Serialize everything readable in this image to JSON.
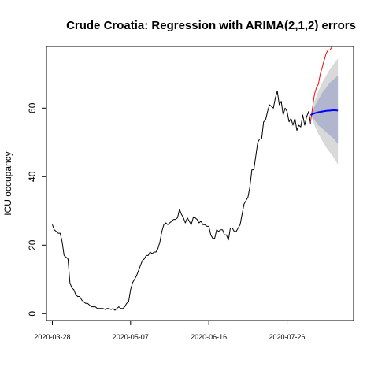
{
  "chart_data": {
    "type": "line",
    "title": "Crude Croatia: Regression with ARIMA(2,1,2) errors",
    "xlabel": "",
    "ylabel": "ICU occupancy",
    "x_range": [
      "2020-03-25",
      "2020-08-29"
    ],
    "ylim": [
      -2,
      78
    ],
    "x_ticks": [
      "2020-03-28",
      "2020-05-07",
      "2020-06-16",
      "2020-07-26"
    ],
    "y_ticks": [
      0,
      20,
      40,
      60
    ],
    "grid": false,
    "legend": "none",
    "colors": {
      "observed": "#000000",
      "actual": "#ff0000",
      "forecast": "#0000ff",
      "band80": "#b1b5ce",
      "band95": "#d9d9d9"
    },
    "series": [
      {
        "values": [
          [
            "2020-03-28",
            26
          ],
          [
            "2020-03-29",
            24.5
          ],
          [
            "2020-03-30",
            24
          ],
          [
            "2020-03-31",
            23.5
          ],
          [
            "2020-04-01",
            23.5
          ],
          [
            "2020-04-02",
            21
          ],
          [
            "2020-04-03",
            17
          ],
          [
            "2020-04-04",
            16.5
          ],
          [
            "2020-04-05",
            16
          ],
          [
            "2020-04-06",
            9
          ],
          [
            "2020-04-07",
            7.5
          ],
          [
            "2020-04-08",
            7
          ],
          [
            "2020-04-09",
            5.5
          ],
          [
            "2020-04-10",
            5
          ],
          [
            "2020-04-11",
            5
          ],
          [
            "2020-04-12",
            4
          ],
          [
            "2020-04-13",
            3.5
          ],
          [
            "2020-04-14",
            3
          ],
          [
            "2020-04-15",
            3
          ],
          [
            "2020-04-16",
            2.5
          ],
          [
            "2020-04-17",
            2
          ],
          [
            "2020-04-18",
            2
          ],
          [
            "2020-04-19",
            2
          ],
          [
            "2020-04-20",
            1.5
          ],
          [
            "2020-04-21",
            1.5
          ],
          [
            "2020-04-22",
            1.5
          ],
          [
            "2020-04-23",
            1.5
          ],
          [
            "2020-04-24",
            1.2
          ],
          [
            "2020-04-25",
            1.5
          ],
          [
            "2020-04-26",
            1.5
          ],
          [
            "2020-04-27",
            1.2
          ],
          [
            "2020-04-28",
            1.5
          ],
          [
            "2020-04-29",
            1
          ],
          [
            "2020-04-30",
            1.5
          ],
          [
            "2020-05-01",
            2
          ],
          [
            "2020-05-02",
            1.5
          ],
          [
            "2020-05-03",
            1.5
          ],
          [
            "2020-05-04",
            2
          ],
          [
            "2020-05-05",
            3
          ],
          [
            "2020-05-06",
            3.5
          ],
          [
            "2020-05-07",
            7
          ],
          [
            "2020-05-08",
            9
          ],
          [
            "2020-05-09",
            10
          ],
          [
            "2020-05-10",
            11
          ],
          [
            "2020-05-11",
            12.5
          ],
          [
            "2020-05-12",
            14
          ],
          [
            "2020-05-13",
            15.5
          ],
          [
            "2020-05-14",
            16
          ],
          [
            "2020-05-15",
            17
          ],
          [
            "2020-05-16",
            17
          ],
          [
            "2020-05-17",
            18
          ],
          [
            "2020-05-18",
            17.5
          ],
          [
            "2020-05-19",
            18
          ],
          [
            "2020-05-20",
            18
          ],
          [
            "2020-05-21",
            19
          ],
          [
            "2020-05-22",
            21
          ],
          [
            "2020-05-23",
            24
          ],
          [
            "2020-05-24",
            26
          ],
          [
            "2020-05-25",
            26.5
          ],
          [
            "2020-05-26",
            26
          ],
          [
            "2020-05-27",
            26.5
          ],
          [
            "2020-05-28",
            27
          ],
          [
            "2020-05-29",
            27.5
          ],
          [
            "2020-05-30",
            27.5
          ],
          [
            "2020-05-31",
            28
          ],
          [
            "2020-06-01",
            30.5
          ],
          [
            "2020-06-02",
            29
          ],
          [
            "2020-06-03",
            28
          ],
          [
            "2020-06-04",
            26.5
          ],
          [
            "2020-06-05",
            28
          ],
          [
            "2020-06-06",
            27
          ],
          [
            "2020-06-07",
            26
          ],
          [
            "2020-06-08",
            28
          ],
          [
            "2020-06-09",
            28
          ],
          [
            "2020-06-10",
            27.5
          ],
          [
            "2020-06-11",
            26.5
          ],
          [
            "2020-06-12",
            27
          ],
          [
            "2020-06-13",
            26
          ],
          [
            "2020-06-14",
            26
          ],
          [
            "2020-06-15",
            25.5
          ],
          [
            "2020-06-16",
            25.5
          ],
          [
            "2020-06-17",
            23
          ],
          [
            "2020-06-18",
            22
          ],
          [
            "2020-06-19",
            22
          ],
          [
            "2020-06-20",
            24.5
          ],
          [
            "2020-06-21",
            24
          ],
          [
            "2020-06-22",
            24.5
          ],
          [
            "2020-06-23",
            24.5
          ],
          [
            "2020-06-24",
            23
          ],
          [
            "2020-06-25",
            23
          ],
          [
            "2020-06-26",
            21.5
          ],
          [
            "2020-06-27",
            25
          ],
          [
            "2020-06-28",
            25
          ],
          [
            "2020-06-29",
            24
          ],
          [
            "2020-06-30",
            24
          ],
          [
            "2020-07-01",
            25
          ],
          [
            "2020-07-02",
            26
          ],
          [
            "2020-07-03",
            29
          ],
          [
            "2020-07-04",
            32
          ],
          [
            "2020-07-05",
            33
          ],
          [
            "2020-07-06",
            34
          ],
          [
            "2020-07-07",
            37
          ],
          [
            "2020-07-08",
            42
          ],
          [
            "2020-07-09",
            42
          ],
          [
            "2020-07-10",
            46
          ],
          [
            "2020-07-11",
            50
          ],
          [
            "2020-07-12",
            51
          ],
          [
            "2020-07-13",
            51
          ],
          [
            "2020-07-14",
            56
          ],
          [
            "2020-07-15",
            56.5
          ],
          [
            "2020-07-16",
            59
          ],
          [
            "2020-07-17",
            61
          ],
          [
            "2020-07-18",
            60.5
          ],
          [
            "2020-07-19",
            60
          ],
          [
            "2020-07-20",
            63
          ],
          [
            "2020-07-21",
            65
          ],
          [
            "2020-07-22",
            61
          ],
          [
            "2020-07-23",
            62
          ],
          [
            "2020-07-24",
            58
          ],
          [
            "2020-07-25",
            60
          ],
          [
            "2020-07-26",
            59
          ],
          [
            "2020-07-27",
            56
          ],
          [
            "2020-07-28",
            57
          ],
          [
            "2020-07-29",
            55
          ],
          [
            "2020-07-30",
            57
          ],
          [
            "2020-07-31",
            53.5
          ],
          [
            "2020-08-01",
            55
          ],
          [
            "2020-08-02",
            54.5
          ],
          [
            "2020-08-03",
            58
          ],
          [
            "2020-08-04",
            55
          ],
          [
            "2020-08-05",
            57.5
          ],
          [
            "2020-08-06",
            59
          ],
          [
            "2020-08-07",
            55.5
          ]
        ],
        "color": "#000000"
      },
      {
        "values": [
          [
            "2020-08-07",
            56
          ],
          [
            "2020-08-08",
            60
          ],
          [
            "2020-08-09",
            64
          ],
          [
            "2020-08-10",
            66
          ],
          [
            "2020-08-11",
            67
          ],
          [
            "2020-08-12",
            70
          ],
          [
            "2020-08-13",
            72
          ],
          [
            "2020-08-14",
            74
          ],
          [
            "2020-08-15",
            76
          ],
          [
            "2020-08-16",
            77
          ],
          [
            "2020-08-17",
            77
          ],
          [
            "2020-08-18",
            78
          ]
        ],
        "color": "#ff0000"
      },
      {
        "values": [
          [
            "2020-08-07",
            58
          ],
          [
            "2020-08-09",
            58.5
          ],
          [
            "2020-08-11",
            58.8
          ],
          [
            "2020-08-13",
            59
          ],
          [
            "2020-08-15",
            59.2
          ],
          [
            "2020-08-17",
            59.3
          ],
          [
            "2020-08-19",
            59.4
          ],
          [
            "2020-08-21",
            59.3
          ]
        ],
        "color": "#0000ff"
      },
      {
        "upper": [
          [
            "2020-08-07",
            58
          ],
          [
            "2020-08-09",
            60.5
          ],
          [
            "2020-08-11",
            62.5
          ],
          [
            "2020-08-13",
            64.5
          ],
          [
            "2020-08-15",
            66
          ],
          [
            "2020-08-17",
            67.5
          ],
          [
            "2020-08-19",
            68.5
          ],
          [
            "2020-08-21",
            69.5
          ]
        ],
        "lower": [
          [
            "2020-08-07",
            58
          ],
          [
            "2020-08-09",
            56.5
          ],
          [
            "2020-08-11",
            55
          ],
          [
            "2020-08-13",
            54
          ],
          [
            "2020-08-15",
            53
          ],
          [
            "2020-08-17",
            52
          ],
          [
            "2020-08-19",
            51
          ],
          [
            "2020-08-21",
            49.5
          ]
        ],
        "color": "#b1b5ce"
      },
      {
        "upper": [
          [
            "2020-08-07",
            58
          ],
          [
            "2020-08-09",
            62
          ],
          [
            "2020-08-11",
            65
          ],
          [
            "2020-08-13",
            67.5
          ],
          [
            "2020-08-15",
            69.5
          ],
          [
            "2020-08-17",
            71.5
          ],
          [
            "2020-08-19",
            73
          ],
          [
            "2020-08-21",
            74.5
          ]
        ],
        "lower": [
          [
            "2020-08-07",
            58
          ],
          [
            "2020-08-09",
            55
          ],
          [
            "2020-08-11",
            52.5
          ],
          [
            "2020-08-13",
            50.5
          ],
          [
            "2020-08-15",
            48.5
          ],
          [
            "2020-08-17",
            47
          ],
          [
            "2020-08-19",
            45.5
          ],
          [
            "2020-08-21",
            43.5
          ]
        ],
        "color": "#d9d9d9"
      }
    ]
  }
}
